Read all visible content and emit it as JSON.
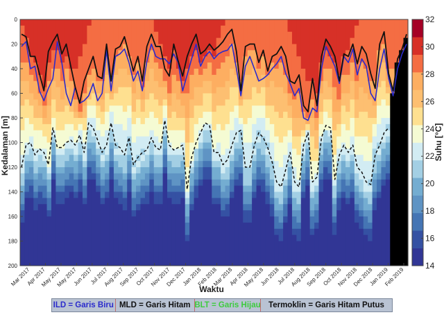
{
  "chart_data": {
    "type": "heatmap",
    "title": "",
    "xlabel": "Waktu",
    "ylabel": "Kedalaman [m]",
    "ylim": [
      0,
      200
    ],
    "y_ticks": [
      0,
      20,
      40,
      60,
      80,
      100,
      120,
      140,
      160,
      180,
      200
    ],
    "y_reversed": true,
    "x_tick_labels": [
      "Mar 2017",
      "Apr 2017",
      "May 2017",
      "May 2017",
      "Jun 2017",
      "Jul 2017",
      "Aug 2017",
      "Sep 2017",
      "Oct 2017",
      "Nov 2017",
      "Dec 2017",
      "Jan 2018",
      "Feb 2018",
      "Mar 2018",
      "Apr 2018",
      "May 2018",
      "Jun 2018",
      "Jul 2018",
      "Aug 2018",
      "Sep 2018",
      "Oct 2018",
      "Nov 2018",
      "Dec 2018",
      "Jan 2019",
      "Feb 2019"
    ],
    "colorbar": {
      "label": "Suhu [°C]",
      "range": [
        14,
        32
      ],
      "ticks": [
        14,
        16,
        18,
        20,
        22,
        24,
        26,
        28,
        30,
        32
      ],
      "colors": [
        "#313695",
        "#3551a3",
        "#4575b4",
        "#5f94c4",
        "#74add1",
        "#a3cfe4",
        "#d2ecf3",
        "#f5fbd3",
        "#fee090",
        "#fdbf71",
        "#fdae61",
        "#f46d43",
        "#d73027",
        "#a50026"
      ]
    },
    "series": [
      {
        "name": "ILD",
        "color": "#2b2bcc",
        "style": "solid",
        "values": [
          22,
          18,
          40,
          38,
          58,
          66,
          56,
          48,
          18,
          35,
          60,
          70,
          55,
          68,
          66,
          62,
          52,
          66,
          60,
          25,
          58,
          30,
          28,
          24,
          35,
          50,
          42,
          58,
          34,
          20,
          30,
          32,
          32,
          36,
          28,
          35,
          58,
          45,
          32,
          20,
          38,
          30,
          26,
          32,
          28,
          26,
          25,
          20,
          40,
          62,
          38,
          30,
          40,
          50,
          48,
          45,
          40,
          36,
          30,
          44,
          52,
          62,
          56,
          80,
          82,
          72,
          75,
          40,
          22,
          30,
          38,
          52,
          30,
          35,
          24,
          45,
          32,
          38,
          60,
          66,
          40,
          24,
          48,
          62,
          40,
          28,
          20
        ]
      },
      {
        "name": "MLD",
        "color": "#111111",
        "style": "solid",
        "values": [
          12,
          14,
          30,
          30,
          44,
          58,
          26,
          18,
          12,
          28,
          20,
          38,
          55,
          68,
          50,
          40,
          30,
          46,
          48,
          20,
          50,
          24,
          22,
          14,
          28,
          42,
          30,
          50,
          22,
          12,
          22,
          22,
          40,
          46,
          20,
          34,
          46,
          30,
          20,
          12,
          28,
          25,
          20,
          25,
          22,
          18,
          12,
          8,
          26,
          58,
          22,
          20,
          20,
          35,
          25,
          42,
          30,
          28,
          22,
          30,
          50,
          52,
          45,
          70,
          75,
          48,
          70,
          30,
          16,
          22,
          30,
          50,
          28,
          30,
          20,
          36,
          22,
          28,
          44,
          56,
          20,
          10,
          44,
          58,
          32,
          24,
          12
        ]
      },
      {
        "name": "Termoklin",
        "color": "#111111",
        "style": "dashed",
        "values": [
          120,
          102,
          100,
          110,
          105,
          108,
          118,
          88,
          104,
          104,
          100,
          98,
          102,
          94,
          108,
          84,
          88,
          98,
          108,
          102,
          84,
          102,
          104,
          110,
          96,
          118,
          112,
          108,
          106,
          96,
          104,
          106,
          82,
          102,
          106,
          104,
          102,
          138,
          112,
          100,
          92,
          84,
          86,
          108,
          108,
          118,
          114,
          102,
          92,
          90,
          120,
          120,
          102,
          92,
          96,
          104,
          116,
          132,
          136,
          122,
          108,
          132,
          136,
          102,
          92,
          132,
          128,
          96,
          86,
          88,
          130,
          110,
          102,
          108,
          102,
          120,
          124,
          132,
          134,
          110,
          102,
          92,
          88
        ]
      }
    ],
    "grid": false
  },
  "legend": {
    "ild": "ILD = Garis Biru",
    "mld": "MLD = Garis Hitam",
    "blt": "BLT = Garis Hijau",
    "termoklin": "Termoklin = Garis Hitam Putus",
    "colors": {
      "ild": "#2b2bcc",
      "mld": "#111111",
      "blt": "#3ecb3e",
      "termoklin": "#111111"
    }
  }
}
